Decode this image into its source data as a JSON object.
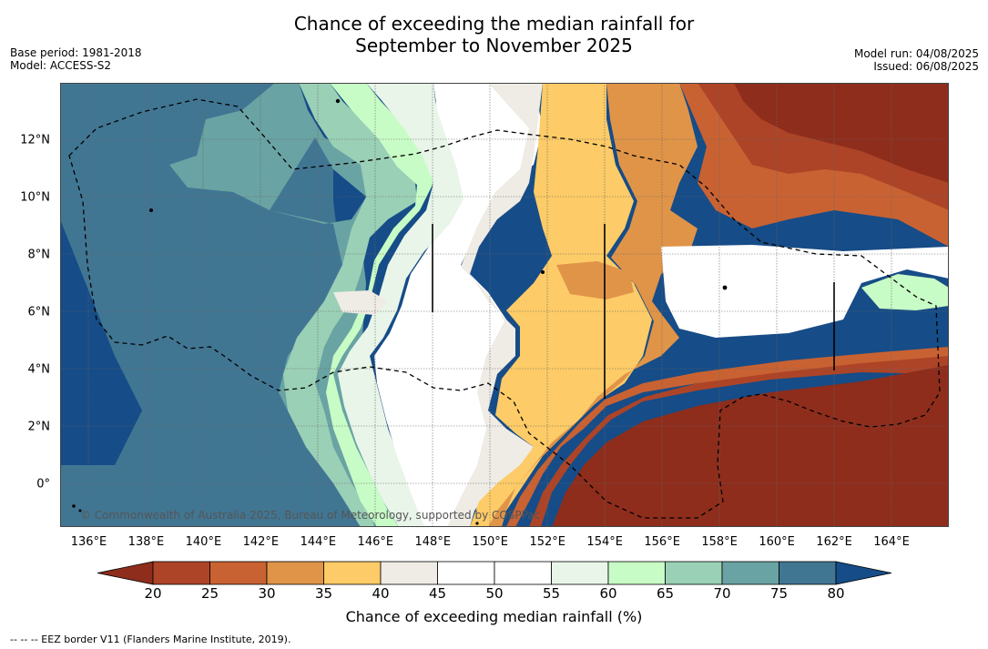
{
  "title": {
    "line1": "Chance of exceeding the median rainfall for",
    "line2": "September to November 2025"
  },
  "meta": {
    "base_period": "Base period: 1981-2018",
    "model": "Model: ACCESS-S2",
    "model_run": "Model run: 04/08/2025",
    "issued": "Issued: 06/08/2025"
  },
  "map": {
    "lon_range": [
      135,
      166
    ],
    "lat_range": [
      -1.5,
      14
    ],
    "lon_ticks": [
      {
        "lon": 136,
        "label": "136°E"
      },
      {
        "lon": 138,
        "label": "138°E"
      },
      {
        "lon": 140,
        "label": "140°E"
      },
      {
        "lon": 142,
        "label": "142°E"
      },
      {
        "lon": 144,
        "label": "144°E"
      },
      {
        "lon": 146,
        "label": "146°E"
      },
      {
        "lon": 148,
        "label": "148°E"
      },
      {
        "lon": 150,
        "label": "150°E"
      },
      {
        "lon": 152,
        "label": "152°E"
      },
      {
        "lon": 154,
        "label": "154°E"
      },
      {
        "lon": 156,
        "label": "156°E"
      },
      {
        "lon": 158,
        "label": "158°E"
      },
      {
        "lon": 160,
        "label": "160°E"
      },
      {
        "lon": 162,
        "label": "162°E"
      },
      {
        "lon": 164,
        "label": "164°E"
      }
    ],
    "lat_ticks": [
      {
        "lat": 0,
        "label": "0°"
      },
      {
        "lat": 2,
        "label": "2°N"
      },
      {
        "lat": 4,
        "label": "4°N"
      },
      {
        "lat": 6,
        "label": "6°N"
      },
      {
        "lat": 8,
        "label": "8°N"
      },
      {
        "lat": 10,
        "label": "10°N"
      },
      {
        "lat": 12,
        "label": "12°N"
      }
    ],
    "copyright": "© Commonwealth of Australia 2025, Bureau of Meteorology, supported by COSPPac",
    "eez_note": "--  --  -- EEZ border V11 (Flanders Marine Institute, 2019)."
  },
  "colorbar": {
    "title": "Chance of exceeding median rainfall (%)",
    "ticks": [
      "20",
      "25",
      "30",
      "35",
      "40",
      "45",
      "50",
      "55",
      "60",
      "65",
      "70",
      "75",
      "80"
    ],
    "colors": {
      "under": "#8e2d1c",
      "b20_25": "#ad4427",
      "b25_30": "#c96232",
      "b30_35": "#e09448",
      "b35_40": "#fdcb67",
      "b40_45": "#efebe5",
      "b45_50": "#ffffff",
      "b50_55": "#ffffff",
      "b55_60": "#e8f5e8",
      "b60_65": "#c8fcc6",
      "b65_70": "#9ad0b6",
      "b70_75": "#6aa3a3",
      "b75_80": "#417693",
      "over": "#164c87"
    }
  }
}
